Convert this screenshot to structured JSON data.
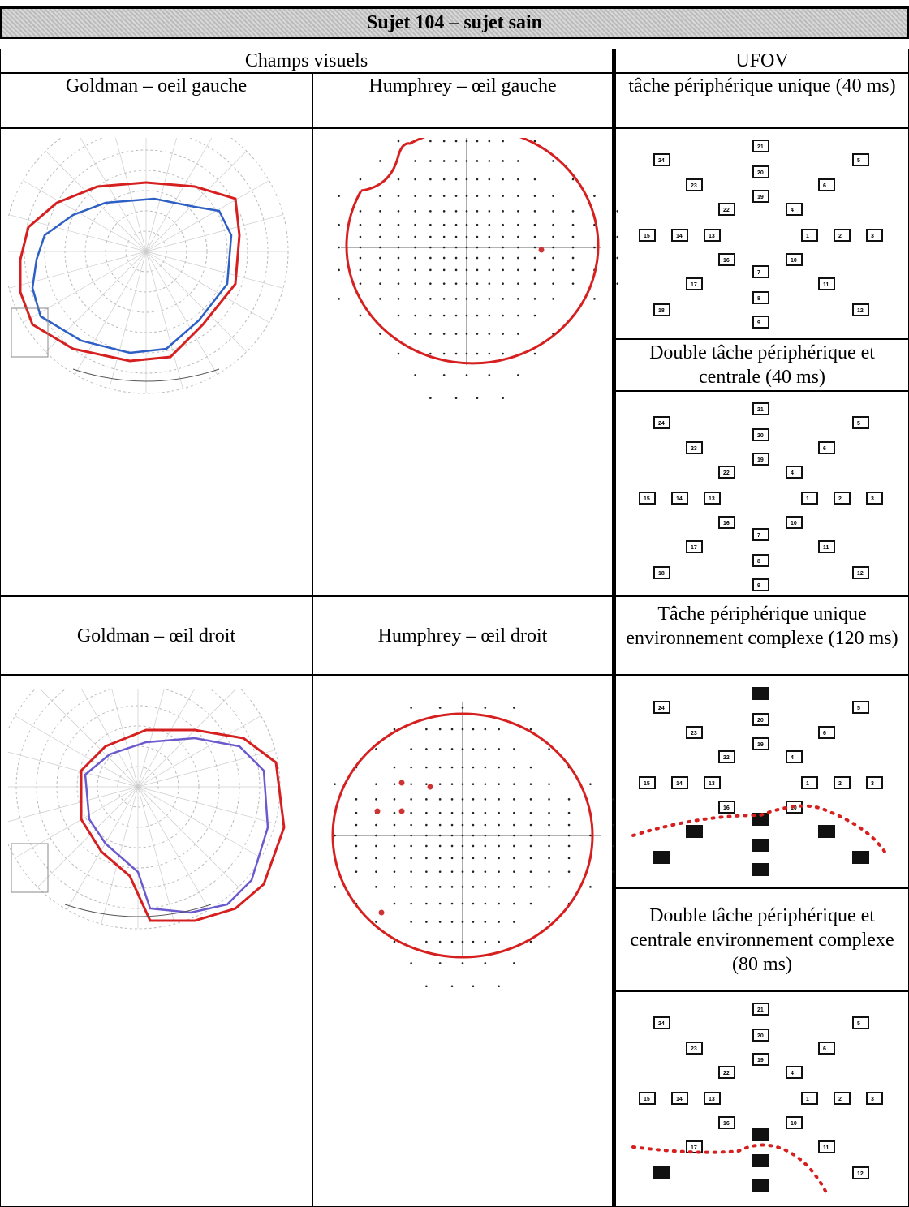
{
  "header": {
    "title": "Sujet 104 – sujet sain"
  },
  "group_headers": {
    "left": "Champs visuels",
    "right": "UFOV"
  },
  "sections": [
    {
      "goldman": "Goldman – oeil gauche",
      "humphrey": "Humphrey – œil gauche",
      "ufov_top": "tâche périphérique unique (40 ms)",
      "ufov_bottom": "Double tâche périphérique et centrale (40 ms)"
    },
    {
      "goldman": "Goldman – œil droit",
      "humphrey": "Humphrey – œil droit",
      "ufov_top": "Tâche périphérique unique environnement complexe (120 ms)",
      "ufov_bottom": "Double tâche périphérique et centrale environnement complexe (80 ms)"
    }
  ],
  "ufov_labels": [
    "24",
    "21",
    "20",
    "19",
    "5",
    "23",
    "6",
    "22",
    "4",
    "15",
    "14",
    "13",
    "1",
    "2",
    "3",
    "16",
    "10",
    "7",
    "17",
    "11",
    "8",
    "18",
    "12",
    "9"
  ]
}
